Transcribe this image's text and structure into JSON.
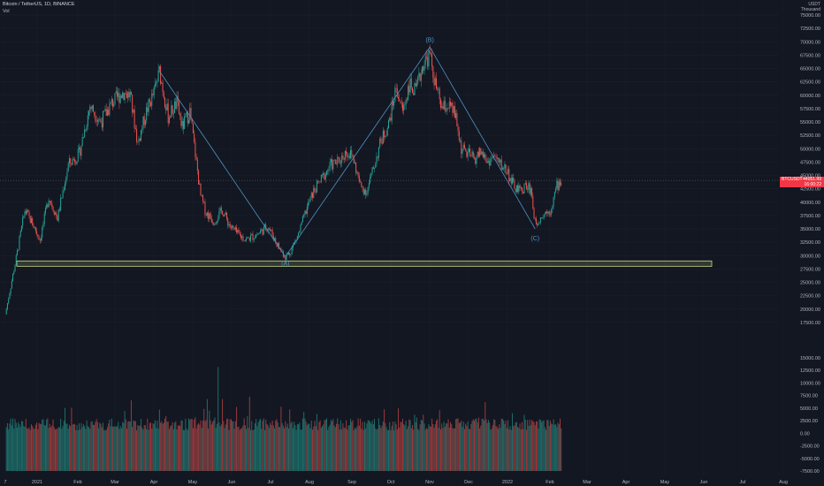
{
  "header": {
    "symbol": "Bitcoin / TetherUS, 1D, BINANCE",
    "volume_label": "Vol"
  },
  "currency": {
    "code": "USDT",
    "sub": "Thousand"
  },
  "price_label": {
    "ticker": "BTCUSDT",
    "price": "44051.99",
    "countdown": "16:00:22"
  },
  "colors": {
    "background": "#131722",
    "up": "#26a69a",
    "down": "#ef5350",
    "pattern_line": "#4f93c4",
    "support_zone": "#c7d982",
    "label_badge": "#f23645"
  },
  "chart_data": [
    {
      "type": "line",
      "title": "",
      "xlabel": "",
      "ylabel": "",
      "ylim": [
        15000,
        75000
      ],
      "yticks": [
        "17500.00",
        "20000.00",
        "22500.00",
        "25000.00",
        "27500.00",
        "30000.00",
        "32500.00",
        "35000.00",
        "37500.00",
        "40000.00",
        "42500.00",
        "45000.00",
        "47500.00",
        "50000.00",
        "52500.00",
        "55000.00",
        "57500.00",
        "60000.00",
        "62500.00",
        "65000.00",
        "67500.00",
        "70000.00",
        "72500.00",
        "75000.00"
      ],
      "xticks": [
        "7",
        "2021",
        "Feb",
        "Mar",
        "Apr",
        "May",
        "Jun",
        "Jul",
        "Aug",
        "Sep",
        "Oct",
        "Nov",
        "Dec",
        "2022",
        "Feb",
        "Mar",
        "Apr",
        "May",
        "Jun",
        "Jul",
        "Aug"
      ],
      "series": [
        {
          "values": [
            [
              0,
              19000
            ],
            [
              10,
              29500
            ],
            [
              18,
              38500
            ],
            [
              25,
              36000
            ],
            [
              32,
              33000
            ],
            [
              40,
              41000
            ],
            [
              48,
              37000
            ],
            [
              58,
              47000
            ],
            [
              68,
              49000
            ],
            [
              78,
              58000
            ],
            [
              88,
              55000
            ],
            [
              98,
              58500
            ],
            [
              108,
              60500
            ],
            [
              115,
              60000
            ],
            [
              122,
              51000
            ],
            [
              130,
              57000
            ],
            [
              137,
              60500
            ],
            [
              142,
              64500
            ],
            [
              150,
              56000
            ],
            [
              158,
              58500
            ],
            [
              163,
              54000
            ],
            [
              170,
              57000
            ],
            [
              175,
              49000
            ],
            [
              180,
              41000
            ],
            [
              185,
              38000
            ],
            [
              192,
              36500
            ],
            [
              200,
              38500
            ],
            [
              207,
              35500
            ],
            [
              214,
              34000
            ],
            [
              222,
              33000
            ],
            [
              232,
              34000
            ],
            [
              242,
              35500
            ],
            [
              252,
              31500
            ],
            [
              258,
              29800
            ],
            [
              262,
              30500
            ],
            [
              270,
              34000
            ],
            [
              278,
              39000
            ],
            [
              284,
              42000
            ],
            [
              292,
              44500
            ],
            [
              300,
              47000
            ],
            [
              307,
              47500
            ],
            [
              314,
              49500
            ],
            [
              320,
              48500
            ],
            [
              327,
              43000
            ],
            [
              333,
              42000
            ],
            [
              340,
              47000
            ],
            [
              346,
              51500
            ],
            [
              353,
              54500
            ],
            [
              360,
              61500
            ],
            [
              366,
              57000
            ],
            [
              372,
              62000
            ],
            [
              378,
              60500
            ],
            [
              385,
              66000
            ],
            [
              391,
              67500
            ],
            [
              396,
              62000
            ],
            [
              402,
              57500
            ],
            [
              408,
              58000
            ],
            [
              414,
              56500
            ],
            [
              420,
              50000
            ],
            [
              426,
              49000
            ],
            [
              432,
              48000
            ],
            [
              438,
              49500
            ],
            [
              444,
              47500
            ],
            [
              450,
              48500
            ],
            [
              456,
              47000
            ],
            [
              462,
              46000
            ],
            [
              468,
              43000
            ],
            [
              474,
              42000
            ],
            [
              479,
              43000
            ],
            [
              484,
              42500
            ],
            [
              488,
              36000
            ],
            [
              492,
              37000
            ],
            [
              497,
              38000
            ],
            [
              502,
              38500
            ],
            [
              508,
              43000
            ],
            [
              512,
              44000
            ]
          ]
        },
        {
          "name": "",
          "values": [
            [
              142,
              64500
            ],
            [
              258,
              29800
            ],
            [
              391,
              69000
            ],
            [
              488,
              35000
            ]
          ]
        }
      ],
      "annotations": [
        "(B)",
        "(A)",
        "(C)"
      ],
      "support_zone": [
        28000,
        29000
      ]
    },
    {
      "type": "bar",
      "ylim": [
        -7500,
        15000
      ],
      "yticks": [
        "-7500.00",
        "-5000.00",
        "-2500.00",
        "0.00",
        "2500.00",
        "5000.00",
        "7500.00",
        "10000.00",
        "12500.00",
        "15000.00"
      ]
    }
  ]
}
